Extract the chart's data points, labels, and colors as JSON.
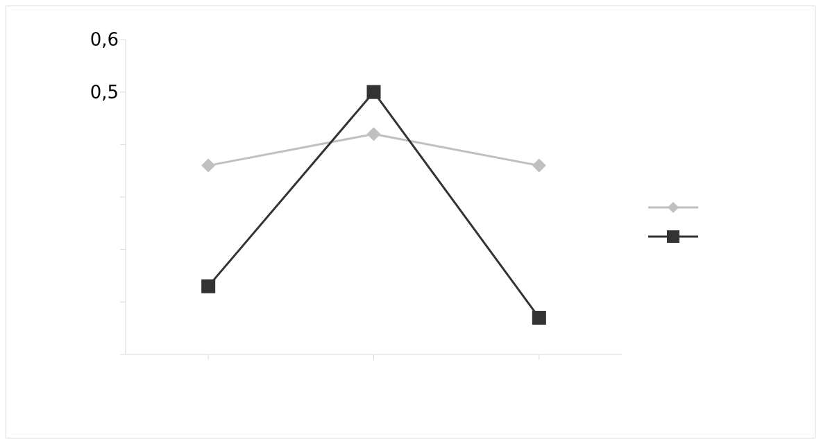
{
  "chart_data": {
    "type": "line",
    "categories": [
      null,
      null,
      null
    ],
    "series": [
      {
        "color": "#c0c0c0",
        "marker": "diamond",
        "values": [
          0.36,
          0.42,
          0.36
        ]
      },
      {
        "color": "#333333",
        "marker": "square",
        "values": [
          0.13,
          0.5,
          0.07
        ]
      }
    ],
    "ylim": [
      0,
      0.6
    ],
    "yticks": [
      {
        "value": 0,
        "label": null
      },
      {
        "value": 0.1,
        "label": null
      },
      {
        "value": 0.2,
        "label": null
      },
      {
        "value": 0.3,
        "label": null
      },
      {
        "value": 0.4,
        "label": null
      },
      {
        "value": 0.5,
        "label": "0,5"
      },
      {
        "value": 0.6,
        "label": "0,6"
      }
    ],
    "tick_labels": "y",
    "grid": false
  }
}
